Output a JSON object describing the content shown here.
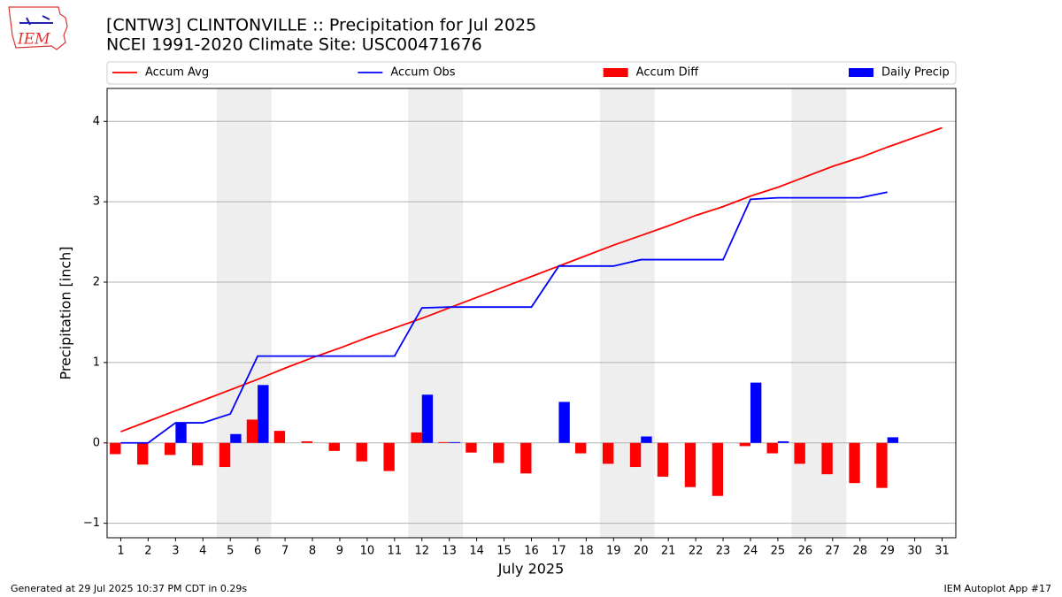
{
  "chart_data": {
    "type": "combo",
    "title": "[CNTW3] CLINTONVILLE :: Precipitation for Jul 2025",
    "subtitle": "NCEI 1991-2020 Climate Site: USC00471676",
    "logo_text": "IEM",
    "xlabel": "July 2025",
    "ylabel": "Precipitation [inch]",
    "footer_left": "Generated at 29 Jul 2025 10:37 PM CDT in 0.29s",
    "footer_right": "IEM Autoplot App #17",
    "legend": "top",
    "grid": true,
    "x": [
      1,
      2,
      3,
      4,
      5,
      6,
      7,
      8,
      9,
      10,
      11,
      12,
      13,
      14,
      15,
      16,
      17,
      18,
      19,
      20,
      21,
      22,
      23,
      24,
      25,
      26,
      27,
      28,
      29,
      30,
      31
    ],
    "xlim": [
      0.5,
      31.5
    ],
    "xticks": [
      1,
      2,
      3,
      4,
      5,
      6,
      7,
      8,
      9,
      10,
      11,
      12,
      13,
      14,
      15,
      16,
      17,
      18,
      19,
      20,
      21,
      22,
      23,
      24,
      25,
      26,
      27,
      28,
      29,
      30,
      31
    ],
    "ylim": [
      -1.18,
      4.41
    ],
    "yticks": [
      {
        "value": -1,
        "label": "−1"
      },
      0,
      1,
      2,
      3,
      4
    ],
    "weekend_ranges": [
      [
        4.5,
        6.5
      ],
      [
        11.5,
        13.5
      ],
      [
        18.5,
        20.5
      ],
      [
        25.5,
        27.5
      ]
    ],
    "weekend_color": "#eeeeee",
    "series": [
      {
        "name": "Accum Avg",
        "type": "line",
        "color": "#ff0000",
        "values": [
          0.14,
          0.27,
          0.4,
          0.53,
          0.66,
          0.79,
          0.93,
          1.06,
          1.18,
          1.31,
          1.43,
          1.55,
          1.68,
          1.81,
          1.94,
          2.07,
          2.2,
          2.33,
          2.46,
          2.58,
          2.7,
          2.83,
          2.94,
          3.07,
          3.18,
          3.31,
          3.44,
          3.55,
          3.68,
          3.8,
          3.92
        ]
      },
      {
        "name": "Accum Obs",
        "type": "line",
        "color": "#0000ff",
        "values": [
          0,
          0,
          0.25,
          0.25,
          0.36,
          1.08,
          1.08,
          1.08,
          1.08,
          1.08,
          1.08,
          1.68,
          1.69,
          1.69,
          1.69,
          1.69,
          2.2,
          2.2,
          2.2,
          2.28,
          2.28,
          2.28,
          2.28,
          3.03,
          3.05,
          3.05,
          3.05,
          3.05,
          3.12,
          null,
          null
        ]
      },
      {
        "name": "Accum Diff",
        "type": "bar",
        "color": "#ff0000",
        "offset": -0.4,
        "values": [
          -0.14,
          -0.27,
          -0.15,
          -0.28,
          -0.3,
          0.29,
          0.15,
          0.02,
          -0.1,
          -0.23,
          -0.35,
          0.13,
          0.01,
          -0.12,
          -0.25,
          -0.38,
          0,
          -0.13,
          -0.26,
          -0.3,
          -0.42,
          -0.55,
          -0.66,
          -0.04,
          -0.13,
          -0.26,
          -0.39,
          -0.5,
          -0.56,
          null,
          null
        ]
      },
      {
        "name": "Daily Precip",
        "type": "bar",
        "color": "#0000ff",
        "offset": 0,
        "values": [
          0,
          0,
          0.25,
          0,
          0.11,
          0.72,
          0,
          0,
          0,
          0,
          0,
          0.6,
          0.01,
          0,
          0,
          0,
          0.51,
          0,
          0,
          0.08,
          0,
          0,
          0,
          0.75,
          0.02,
          0,
          0,
          0,
          0.07,
          null,
          null
        ]
      }
    ]
  }
}
